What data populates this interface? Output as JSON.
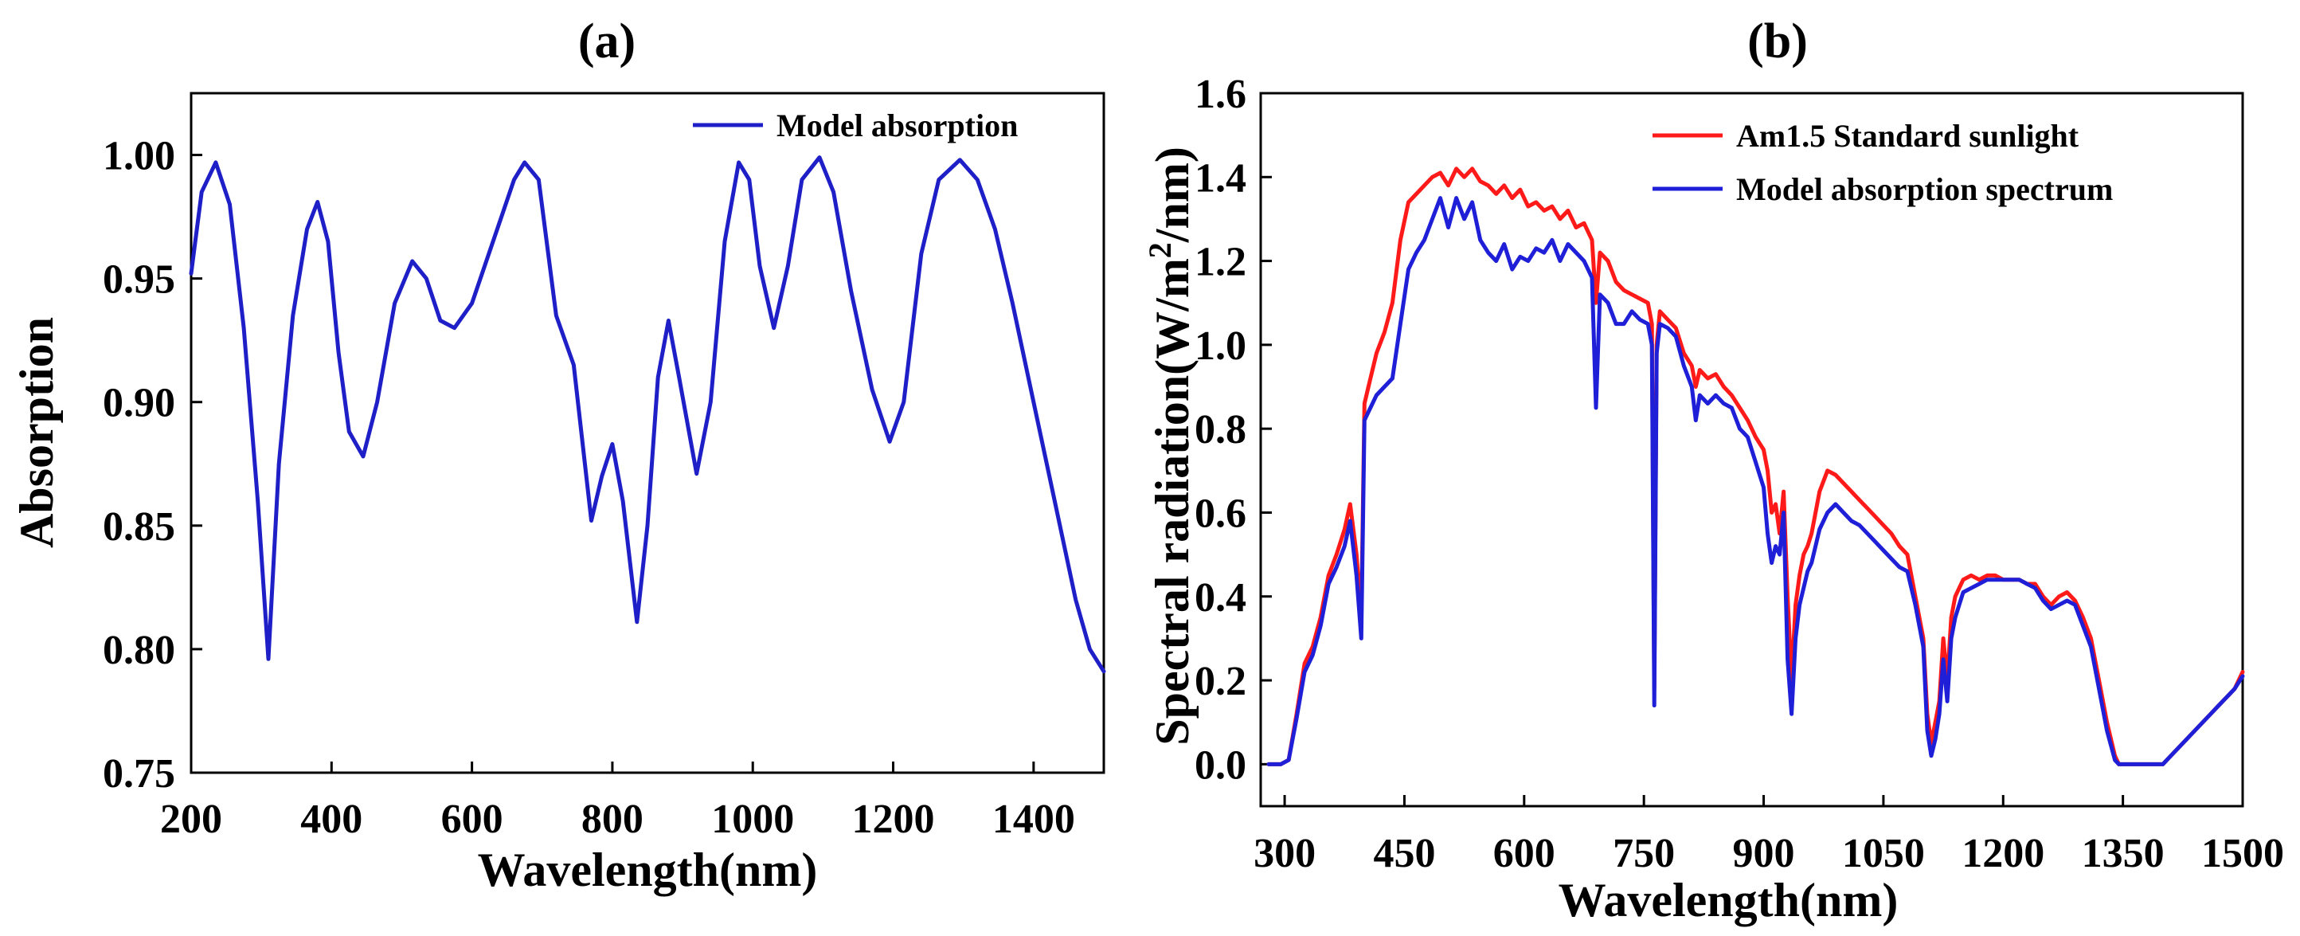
{
  "chart_data": [
    {
      "panel_label": "(a)",
      "type": "line",
      "xlabel": "Wavelength(nm)",
      "ylabel": "Absorption",
      "xlim": [
        200,
        1500
      ],
      "ylim": [
        0.75,
        1.025
      ],
      "xticks": [
        200,
        400,
        600,
        800,
        1000,
        1200,
        1400
      ],
      "xtick_labels": [
        "200",
        "400",
        "600",
        "800",
        "1000",
        "1200",
        "1400"
      ],
      "yticks": [
        0.75,
        0.8,
        0.85,
        0.9,
        0.95,
        1.0
      ],
      "ytick_labels": [
        "0.75",
        "0.80",
        "0.85",
        "0.90",
        "0.95",
        "1.00"
      ],
      "legend_position": "top-right",
      "series": [
        {
          "name": "Model absorption",
          "color": "#1f1fc8",
          "x": [
            200,
            215,
            235,
            255,
            275,
            295,
            310,
            325,
            345,
            365,
            380,
            395,
            410,
            425,
            445,
            465,
            490,
            515,
            535,
            555,
            575,
            600,
            630,
            660,
            675,
            695,
            720,
            745,
            770,
            785,
            800,
            815,
            835,
            850,
            865,
            880,
            895,
            920,
            940,
            960,
            980,
            995,
            1010,
            1030,
            1050,
            1070,
            1095,
            1115,
            1140,
            1170,
            1195,
            1215,
            1240,
            1265,
            1295,
            1320,
            1345,
            1370,
            1400,
            1430,
            1460,
            1480,
            1500
          ],
          "y": [
            0.952,
            0.985,
            0.997,
            0.98,
            0.93,
            0.86,
            0.796,
            0.875,
            0.935,
            0.97,
            0.981,
            0.965,
            0.92,
            0.888,
            0.878,
            0.9,
            0.94,
            0.957,
            0.95,
            0.933,
            0.93,
            0.94,
            0.965,
            0.99,
            0.997,
            0.99,
            0.935,
            0.915,
            0.852,
            0.87,
            0.883,
            0.86,
            0.811,
            0.85,
            0.91,
            0.933,
            0.91,
            0.871,
            0.9,
            0.965,
            0.997,
            0.99,
            0.955,
            0.93,
            0.955,
            0.99,
            0.999,
            0.985,
            0.945,
            0.905,
            0.884,
            0.9,
            0.96,
            0.99,
            0.998,
            0.99,
            0.97,
            0.94,
            0.9,
            0.86,
            0.82,
            0.8,
            0.791
          ]
        }
      ]
    },
    {
      "panel_label": "(b)",
      "type": "line",
      "xlabel": "Wavelength(nm)",
      "ylabel_prefix": "Spectral radiation(W/m",
      "ylabel_sup": "2",
      "ylabel_suffix": "/nm)",
      "xlim": [
        270,
        1500
      ],
      "ylim": [
        -0.1,
        1.6
      ],
      "xticks": [
        300,
        450,
        600,
        750,
        900,
        1050,
        1200,
        1350,
        1500
      ],
      "xtick_labels": [
        "300",
        "450",
        "600",
        "750",
        "900",
        "1050",
        "1200",
        "1350",
        "1500"
      ],
      "yticks": [
        0.0,
        0.2,
        0.4,
        0.6,
        0.8,
        1.0,
        1.2,
        1.4,
        1.6
      ],
      "ytick_labels": [
        "0.0",
        "0.2",
        "0.4",
        "0.6",
        "0.8",
        "1.0",
        "1.2",
        "1.4",
        "1.6"
      ],
      "legend_position": "top-right",
      "series": [
        {
          "name": "Am1.5 Standard sunlight",
          "color": "#ff1a1a",
          "x": [
            280,
            295,
            305,
            315,
            325,
            335,
            345,
            355,
            365,
            375,
            382,
            390,
            396,
            400,
            405,
            415,
            425,
            435,
            445,
            455,
            465,
            475,
            485,
            495,
            505,
            515,
            525,
            535,
            545,
            555,
            565,
            575,
            585,
            595,
            605,
            615,
            625,
            635,
            645,
            655,
            665,
            675,
            685,
            690,
            695,
            705,
            715,
            725,
            735,
            745,
            755,
            760,
            763,
            766,
            770,
            780,
            790,
            800,
            810,
            815,
            820,
            830,
            840,
            850,
            860,
            870,
            880,
            890,
            900,
            905,
            910,
            915,
            920,
            925,
            930,
            935,
            940,
            945,
            950,
            955,
            960,
            965,
            970,
            980,
            990,
            1000,
            1010,
            1020,
            1030,
            1040,
            1050,
            1060,
            1070,
            1080,
            1090,
            1100,
            1105,
            1110,
            1115,
            1120,
            1125,
            1130,
            1135,
            1140,
            1145,
            1150,
            1160,
            1170,
            1180,
            1190,
            1200,
            1210,
            1220,
            1230,
            1240,
            1250,
            1260,
            1270,
            1280,
            1290,
            1300,
            1310,
            1320,
            1330,
            1340,
            1345,
            1350,
            1360,
            1370,
            1380,
            1390,
            1400,
            1410,
            1420,
            1430,
            1440,
            1450,
            1460,
            1470,
            1480,
            1490,
            1500
          ],
          "y": [
            0.0,
            0.0,
            0.01,
            0.12,
            0.24,
            0.28,
            0.35,
            0.45,
            0.5,
            0.56,
            0.62,
            0.5,
            0.35,
            0.86,
            0.9,
            0.98,
            1.03,
            1.1,
            1.25,
            1.34,
            1.36,
            1.38,
            1.4,
            1.41,
            1.38,
            1.42,
            1.4,
            1.42,
            1.39,
            1.38,
            1.36,
            1.38,
            1.35,
            1.37,
            1.33,
            1.34,
            1.32,
            1.33,
            1.3,
            1.32,
            1.28,
            1.29,
            1.25,
            1.1,
            1.22,
            1.2,
            1.15,
            1.13,
            1.12,
            1.11,
            1.1,
            1.05,
            0.18,
            1.0,
            1.08,
            1.06,
            1.04,
            0.98,
            0.95,
            0.9,
            0.94,
            0.92,
            0.93,
            0.9,
            0.88,
            0.85,
            0.82,
            0.78,
            0.75,
            0.7,
            0.6,
            0.62,
            0.55,
            0.65,
            0.4,
            0.2,
            0.38,
            0.45,
            0.5,
            0.52,
            0.55,
            0.6,
            0.65,
            0.7,
            0.69,
            0.67,
            0.65,
            0.63,
            0.61,
            0.59,
            0.57,
            0.55,
            0.52,
            0.5,
            0.4,
            0.3,
            0.12,
            0.05,
            0.1,
            0.15,
            0.3,
            0.2,
            0.35,
            0.4,
            0.42,
            0.44,
            0.45,
            0.44,
            0.45,
            0.45,
            0.44,
            0.44,
            0.44,
            0.43,
            0.43,
            0.4,
            0.38,
            0.4,
            0.41,
            0.39,
            0.35,
            0.3,
            0.2,
            0.1,
            0.02,
            0.0,
            0.0,
            0.0,
            0.0,
            0.0,
            0.0,
            0.0,
            0.02,
            0.04,
            0.06,
            0.08,
            0.1,
            0.12,
            0.14,
            0.16,
            0.18,
            0.22
          ]
        },
        {
          "name": "Model absorption spectrum",
          "color": "#1f1fd8",
          "x": [
            280,
            295,
            305,
            315,
            325,
            335,
            345,
            355,
            365,
            375,
            382,
            390,
            396,
            400,
            405,
            415,
            425,
            435,
            445,
            455,
            465,
            475,
            485,
            495,
            505,
            515,
            525,
            535,
            545,
            555,
            565,
            575,
            585,
            595,
            605,
            615,
            625,
            635,
            645,
            655,
            665,
            675,
            685,
            690,
            695,
            705,
            715,
            725,
            735,
            745,
            755,
            760,
            763,
            766,
            770,
            780,
            790,
            800,
            810,
            815,
            820,
            830,
            840,
            850,
            860,
            870,
            880,
            890,
            900,
            905,
            910,
            915,
            920,
            925,
            930,
            935,
            940,
            945,
            950,
            955,
            960,
            965,
            970,
            980,
            990,
            1000,
            1010,
            1020,
            1030,
            1040,
            1050,
            1060,
            1070,
            1080,
            1090,
            1100,
            1105,
            1110,
            1115,
            1120,
            1125,
            1130,
            1135,
            1140,
            1145,
            1150,
            1160,
            1170,
            1180,
            1190,
            1200,
            1210,
            1220,
            1230,
            1240,
            1250,
            1260,
            1270,
            1280,
            1290,
            1300,
            1310,
            1320,
            1330,
            1340,
            1345,
            1350,
            1360,
            1370,
            1380,
            1390,
            1400,
            1410,
            1420,
            1430,
            1440,
            1450,
            1460,
            1470,
            1480,
            1490,
            1500
          ],
          "y": [
            0.0,
            0.0,
            0.01,
            0.11,
            0.22,
            0.26,
            0.33,
            0.43,
            0.47,
            0.52,
            0.58,
            0.45,
            0.3,
            0.82,
            0.84,
            0.88,
            0.9,
            0.92,
            1.05,
            1.18,
            1.22,
            1.25,
            1.3,
            1.35,
            1.28,
            1.35,
            1.3,
            1.34,
            1.25,
            1.22,
            1.2,
            1.24,
            1.18,
            1.21,
            1.2,
            1.23,
            1.22,
            1.25,
            1.2,
            1.24,
            1.22,
            1.2,
            1.16,
            0.85,
            1.12,
            1.1,
            1.05,
            1.05,
            1.08,
            1.06,
            1.05,
            1.0,
            0.14,
            0.98,
            1.05,
            1.04,
            1.02,
            0.95,
            0.9,
            0.82,
            0.88,
            0.86,
            0.88,
            0.86,
            0.85,
            0.8,
            0.78,
            0.72,
            0.66,
            0.55,
            0.48,
            0.52,
            0.5,
            0.6,
            0.25,
            0.12,
            0.3,
            0.38,
            0.42,
            0.46,
            0.48,
            0.52,
            0.56,
            0.6,
            0.62,
            0.6,
            0.58,
            0.57,
            0.55,
            0.53,
            0.51,
            0.49,
            0.47,
            0.46,
            0.38,
            0.28,
            0.08,
            0.02,
            0.06,
            0.12,
            0.25,
            0.15,
            0.3,
            0.35,
            0.38,
            0.41,
            0.42,
            0.43,
            0.44,
            0.44,
            0.44,
            0.44,
            0.44,
            0.43,
            0.42,
            0.39,
            0.37,
            0.38,
            0.39,
            0.38,
            0.33,
            0.28,
            0.18,
            0.08,
            0.01,
            0.0,
            0.0,
            0.0,
            0.0,
            0.0,
            0.0,
            0.0,
            0.02,
            0.04,
            0.06,
            0.08,
            0.1,
            0.12,
            0.14,
            0.16,
            0.18,
            0.21
          ]
        }
      ]
    }
  ]
}
